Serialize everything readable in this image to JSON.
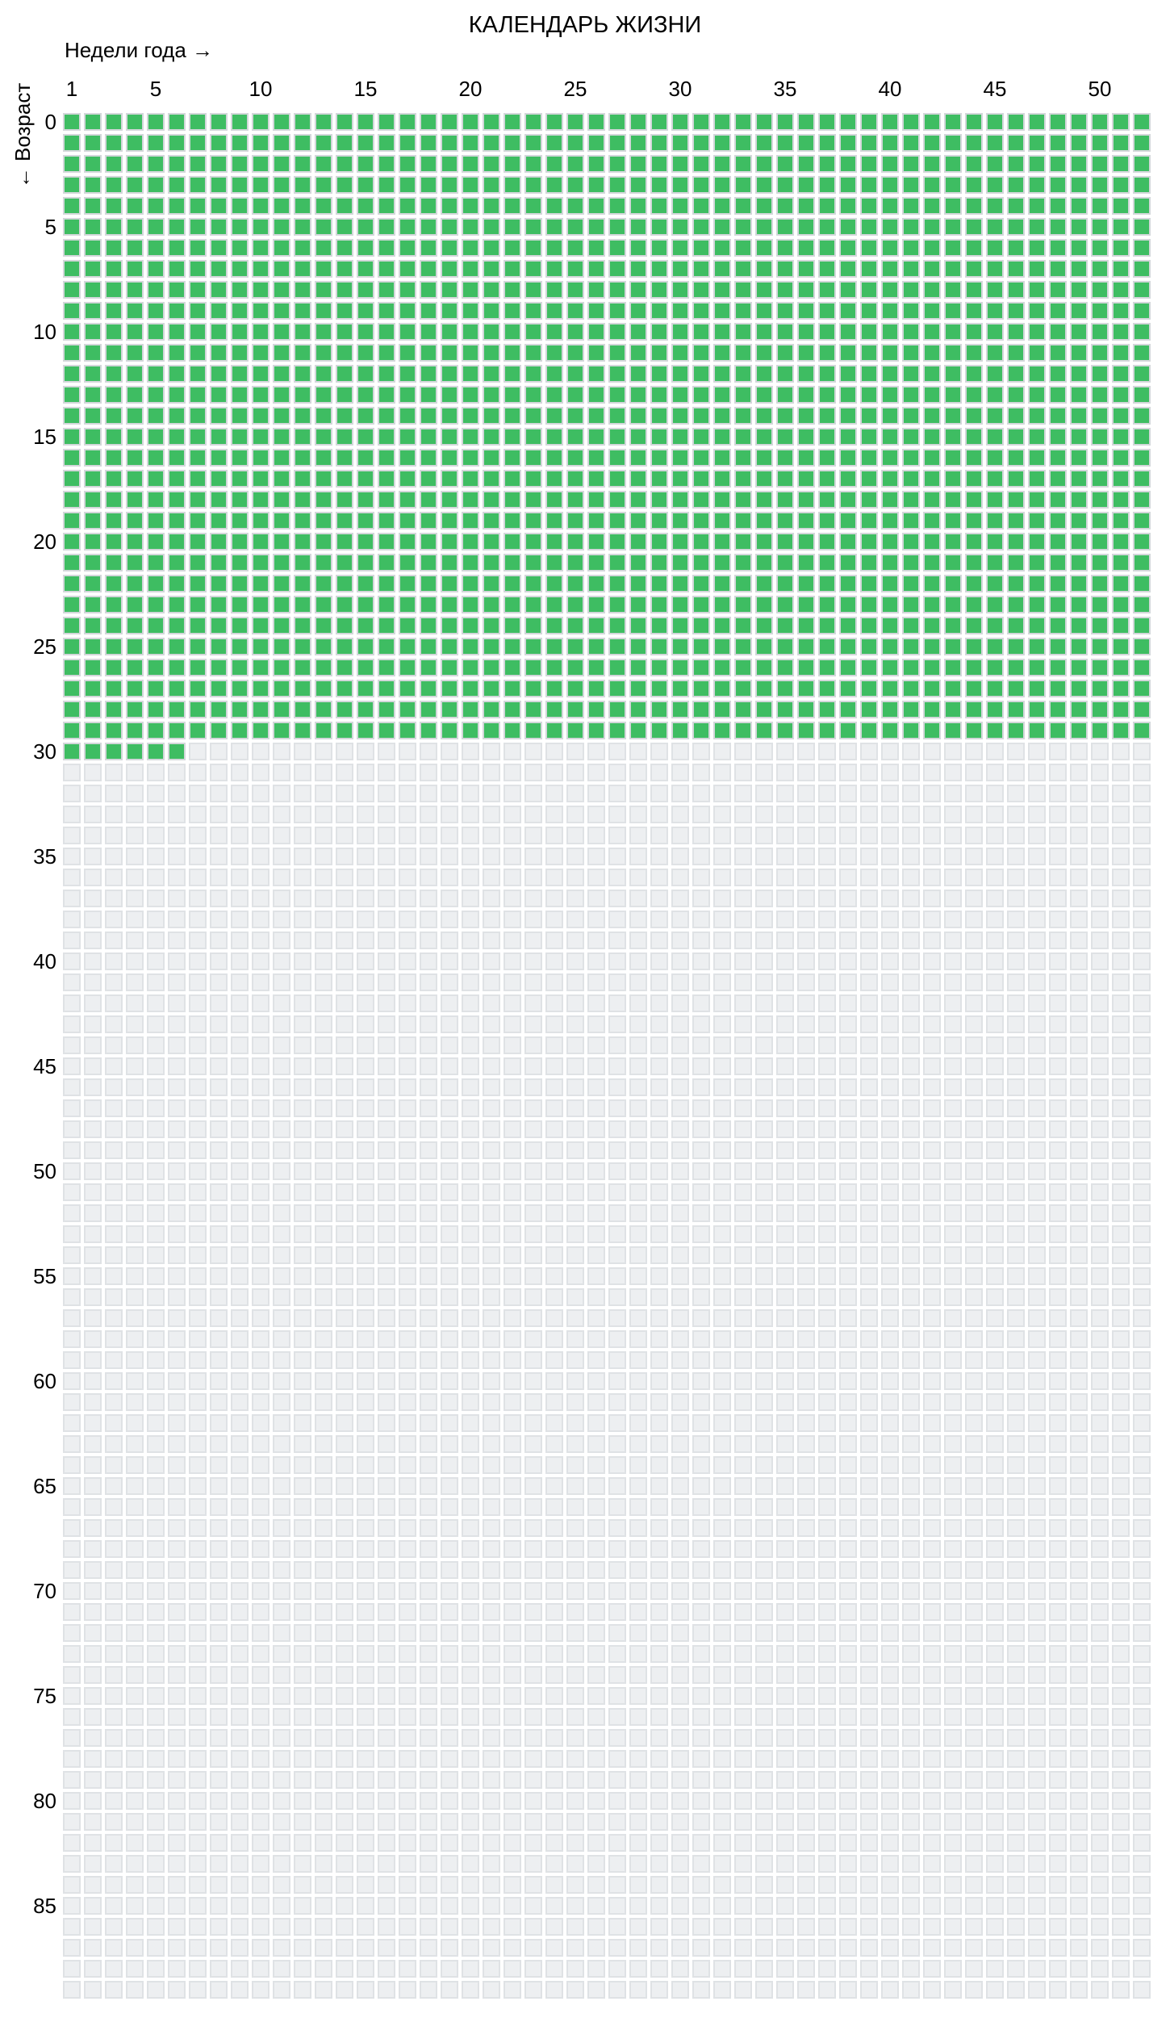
{
  "title": "КАЛЕНДАРЬ ЖИЗНИ",
  "x_axis": {
    "label": "Недели года →",
    "ticks": [
      1,
      5,
      10,
      15,
      20,
      25,
      30,
      35,
      40,
      45,
      50
    ]
  },
  "y_axis": {
    "label": "← Возраст",
    "ticks": [
      0,
      5,
      10,
      15,
      20,
      25,
      30,
      35,
      40,
      45,
      50,
      55,
      60,
      65,
      70,
      75,
      80,
      85
    ]
  },
  "colors": {
    "filled_week": "#3ebd62",
    "filled_week_border": "#d3d7da",
    "empty_week": "#edeff1",
    "empty_week_border": "#dfe2e5",
    "background": "#ffffff",
    "text": "#000000"
  },
  "chart_data": {
    "type": "heatmap",
    "subtype": "waffle-life-calendar",
    "title": "КАЛЕНДАРЬ ЖИЗНИ",
    "xlabel": "Недели года →",
    "ylabel": "← Возраст",
    "columns_weeks": 52,
    "rows_years": 90,
    "x_ticks": [
      1,
      5,
      10,
      15,
      20,
      25,
      30,
      35,
      40,
      45,
      50
    ],
    "y_ticks": [
      0,
      5,
      10,
      15,
      20,
      25,
      30,
      35,
      40,
      45,
      50,
      55,
      60,
      65,
      70,
      75,
      80,
      85
    ],
    "filled": {
      "full_rows": 30,
      "partial_row_index": 30,
      "weeks_filled_in_partial_row": 6,
      "total_filled_weeks": 1566
    },
    "legend_position": "none",
    "grid_lines": "off"
  }
}
